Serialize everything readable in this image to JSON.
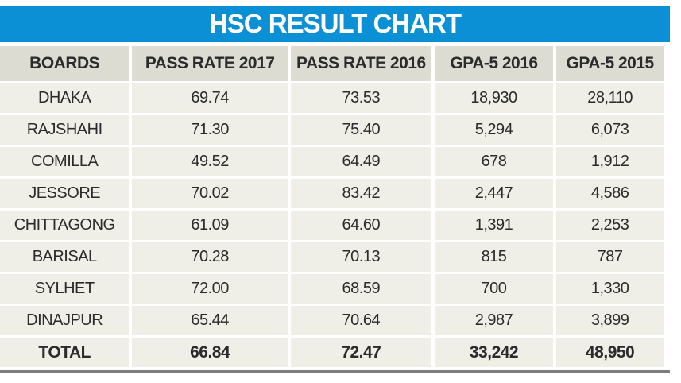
{
  "title": "HSC RESULT CHART",
  "chart_data": {
    "type": "table",
    "title": "HSC RESULT CHART",
    "columns": [
      "BOARDS",
      "PASS RATE 2017",
      "PASS RATE 2016",
      "GPA-5 2016",
      "GPA-5 2015"
    ],
    "rows": [
      [
        "DHAKA",
        "69.74",
        "73.53",
        "18,930",
        "28,110"
      ],
      [
        "RAJSHAHI",
        "71.30",
        "75.40",
        "5,294",
        "6,073"
      ],
      [
        "COMILLA",
        "49.52",
        "64.49",
        "678",
        "1,912"
      ],
      [
        "JESSORE",
        "70.02",
        "83.42",
        "2,447",
        "4,586"
      ],
      [
        "CHITTAGONG",
        "61.09",
        "64.60",
        "1,391",
        "2,253"
      ],
      [
        "BARISAL",
        "70.28",
        "70.13",
        "815",
        "787"
      ],
      [
        "SYLHET",
        "72.00",
        "68.59",
        "700",
        "1,330"
      ],
      [
        "DINAJPUR",
        "65.44",
        "70.64",
        "2,987",
        "3,899"
      ]
    ],
    "total": [
      "TOTAL",
      "66.84",
      "72.47",
      "33,242",
      "48,950"
    ]
  },
  "colors": {
    "title_bg": "#0b8fd5",
    "header_bg": "#dcdcd2",
    "cell_bg": "#efefe7"
  }
}
